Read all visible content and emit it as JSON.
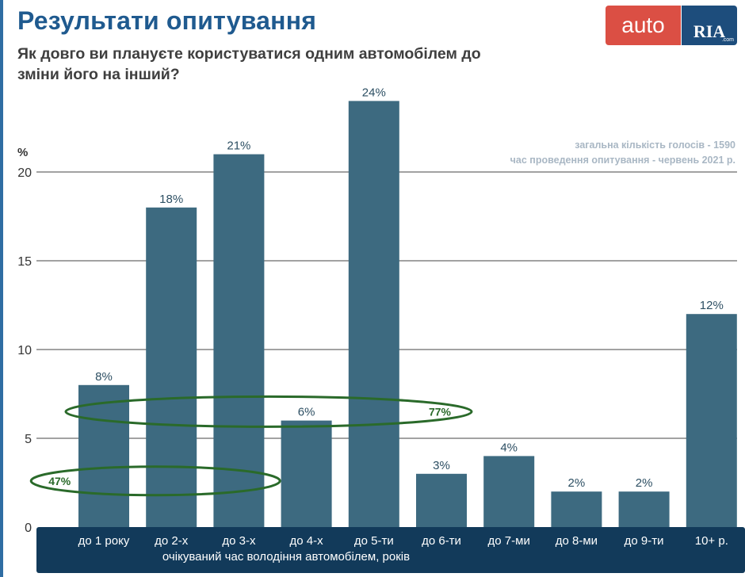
{
  "header": {
    "title": "Результати опитування",
    "subtitle": "Як довго ви плануєте користуватися одним автомобілем до зміни його на інший?"
  },
  "logo": {
    "auto": "auto",
    "ria": "RIA",
    "com": ".com"
  },
  "notes": {
    "total_votes": "загальна кількість голосів - 1590",
    "survey_period": "час проведення опитування - червень 2021 р."
  },
  "chart_data": {
    "type": "bar",
    "title": "Результати опитування",
    "ylabel": "%",
    "xlabel": "очікуваний час володіння автомобілем, років",
    "ylim": [
      0,
      24
    ],
    "yticks": [
      0,
      5,
      10,
      15,
      20
    ],
    "grid": true,
    "categories": [
      "до 1 року",
      "до 2-х",
      "до 3-х",
      "до 4-х",
      "до 5-ти",
      "до 6-ти",
      "до 7-ми",
      "до 8-ми",
      "до 9-ти",
      "10+ р."
    ],
    "values": [
      8,
      18,
      21,
      6,
      24,
      3,
      4,
      2,
      2,
      12
    ],
    "value_labels": [
      "8%",
      "18%",
      "21%",
      "6%",
      "24%",
      "3%",
      "4%",
      "2%",
      "2%",
      "12%"
    ],
    "annotations": [
      {
        "label": "47%",
        "spans": [
          "до 1 року",
          "до 2-х",
          "до 3-х"
        ]
      },
      {
        "label": "77%",
        "spans": [
          "до 1 року",
          "до 2-х",
          "до 3-х",
          "до 4-х",
          "до 5-ти"
        ]
      }
    ],
    "colors": {
      "bar": "#3d6a80",
      "annotation": "#2a6a2a",
      "grid": "#444444",
      "label": "#2d4f63",
      "tick": "#333333"
    }
  }
}
